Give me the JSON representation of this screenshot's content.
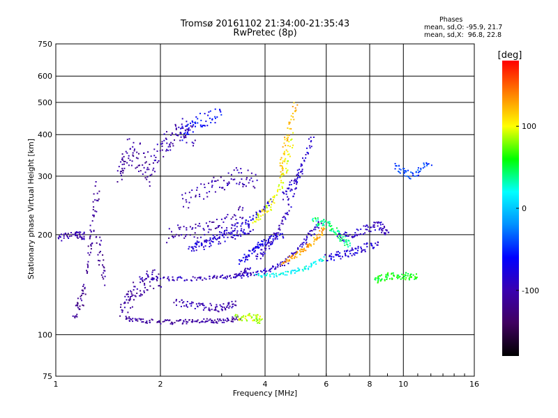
{
  "header": {
    "title_line1": "Tromsø 20161102 21:34:00-21:35:43",
    "title_line2": "RwPretec (8p)",
    "phases_heading": "Phases",
    "phases_line1": "mean, sd,O: -95.9, 21.7",
    "phases_line2": "mean, sd,X:  96.8, 22.8"
  },
  "chart_data": {
    "type": "scatter",
    "title": "Tromsø 20161102 21:34:00-21:35:43",
    "subtitle": "RwPretec (8p)",
    "xlabel": "Frequency [MHz]",
    "ylabel": "Stationary phase Virtual Height [km]",
    "x_scale": "log",
    "y_scale": "log",
    "xlim": [
      1,
      16
    ],
    "ylim": [
      75,
      750
    ],
    "x_ticks": [
      1,
      2,
      4,
      6,
      8,
      10,
      16
    ],
    "x_tick_labels": [
      "1",
      "2",
      "4",
      "6",
      "8",
      "10",
      "16"
    ],
    "y_ticks": [
      75,
      100,
      200,
      300,
      400,
      500,
      600,
      750
    ],
    "y_tick_labels": [
      "75",
      "100",
      "200",
      "300",
      "400",
      "500",
      "600",
      "750"
    ],
    "grid": true,
    "colorbar": {
      "label": "[deg]",
      "range": [
        -180,
        180
      ],
      "ticks": [
        100,
        0,
        -100
      ],
      "tick_labels": [
        "100",
        "0",
        "-100"
      ],
      "colors": [
        "#000000",
        "#400060",
        "#3a00b0",
        "#0000ff",
        "#0090ff",
        "#00ffff",
        "#00ff00",
        "#ffff00",
        "#ff8000",
        "#ff0000"
      ]
    },
    "series": [
      {
        "traces": [
          {
            "x": [
              1.0,
              1.15,
              1.2
            ],
            "y": [
              195,
              200,
              198
            ],
            "phase": -100,
            "spread": 0.05
          },
          {
            "x": [
              1.13,
              1.2,
              1.27,
              1.32
            ],
            "y": [
              115,
              130,
              200,
              285
            ],
            "phase": -115,
            "spread": 0.12
          },
          {
            "x": [
              1.32,
              1.38
            ],
            "y": [
              200,
              140
            ],
            "phase": -112,
            "spread": 0.1
          },
          {
            "x": [
              1.52,
              1.6,
              1.75,
              1.9
            ],
            "y": [
              300,
              360,
              340,
              300
            ],
            "phase": -110,
            "spread": 0.2
          },
          {
            "x": [
              1.55,
              1.65,
              1.8,
              2.0
            ],
            "y": [
              120,
              130,
              145,
              150
            ],
            "phase": -108,
            "spread": 0.15
          },
          {
            "x": [
              1.58,
              1.8,
              2.2,
              2.6,
              3.0,
              3.4
            ],
            "y": [
              112,
              110,
              109,
              110,
              110,
              112
            ],
            "phase": -110,
            "spread": 0.03
          },
          {
            "x": [
              1.9,
              2.1,
              2.3,
              2.5
            ],
            "y": [
              330,
              380,
              420,
              390
            ],
            "phase": -100,
            "spread": 0.15
          },
          {
            "x": [
              2.1,
              2.5,
              3.0,
              3.5
            ],
            "y": [
              200,
              205,
              210,
              240
            ],
            "phase": -105,
            "spread": 0.12
          },
          {
            "x": [
              2.3,
              2.8,
              3.3,
              3.8
            ],
            "y": [
              250,
              280,
              300,
              290
            ],
            "phase": -100,
            "spread": 0.12
          },
          {
            "x": [
              1.75,
              2.2,
              2.8,
              3.3,
              3.6
            ],
            "y": [
              148,
              147,
              148,
              150,
              157
            ],
            "phase": -95,
            "spread": 0.03
          },
          {
            "x": [
              2.2,
              2.6,
              3.0,
              3.3
            ],
            "y": [
              125,
              122,
              120,
              125
            ],
            "phase": -100,
            "spread": 0.05
          },
          {
            "x": [
              2.4,
              2.8,
              3.3,
              3.7
            ],
            "y": [
              180,
              190,
              200,
              210
            ],
            "phase": -85,
            "spread": 0.06
          },
          {
            "x": [
              3.3,
              3.7,
              3.9
            ],
            "y": [
              112,
              113,
              110
            ],
            "phase": 90,
            "spread": 0.05
          },
          {
            "x": [
              2.3,
              2.6,
              3.0
            ],
            "y": [
              400,
              440,
              460
            ],
            "phase": -60,
            "spread": 0.1
          },
          {
            "x": [
              2.5,
              3.0,
              3.6,
              4.2
            ],
            "y": [
              185,
              200,
              220,
              255
            ],
            "phase": -80,
            "spread": 0.04
          },
          {
            "x": [
              3.4,
              3.7,
              4.0,
              4.5
            ],
            "y": [
              165,
              180,
              190,
              200
            ],
            "phase": -75,
            "spread": 0.04
          },
          {
            "x": [
              3.7,
              4.1,
              4.5,
              4.8
            ],
            "y": [
              220,
              240,
              290,
              400
            ],
            "phase": 100,
            "spread": 0.05
          },
          {
            "x": [
              4.4,
              4.6,
              4.9
            ],
            "y": [
              300,
              380,
              500
            ],
            "phase": 120,
            "spread": 0.04
          },
          {
            "x": [
              3.8,
              4.2,
              4.6,
              5.1
            ],
            "y": [
              170,
              190,
              230,
              320
            ],
            "phase": -90,
            "spread": 0.04
          },
          {
            "x": [
              4.5,
              5.0,
              5.5
            ],
            "y": [
              260,
              300,
              400
            ],
            "phase": -85,
            "spread": 0.05
          },
          {
            "x": [
              3.4,
              4.0,
              4.6,
              5.2,
              5.8
            ],
            "y": [
              150,
              155,
              165,
              190,
              220
            ],
            "phase": -90,
            "spread": 0.03
          },
          {
            "x": [
              3.8,
              4.5,
              5.2,
              5.9
            ],
            "y": [
              150,
              152,
              158,
              170
            ],
            "phase": 20,
            "spread": 0.03
          },
          {
            "x": [
              4.5,
              5.0,
              5.5,
              6.0
            ],
            "y": [
              165,
              175,
              190,
              210
            ],
            "phase": 130,
            "spread": 0.04
          },
          {
            "x": [
              5.5,
              6.0,
              6.5,
              7.0
            ],
            "y": [
              220,
              215,
              200,
              185
            ],
            "phase": 40,
            "spread": 0.06
          },
          {
            "x": [
              6.0,
              6.8,
              7.5,
              8.5
            ],
            "y": [
              170,
              175,
              180,
              190
            ],
            "phase": -80,
            "spread": 0.06
          },
          {
            "x": [
              6.5,
              7.5,
              8.5,
              9.0
            ],
            "y": [
              195,
              205,
              215,
              200
            ],
            "phase": -90,
            "spread": 0.06
          },
          {
            "x": [
              8.3,
              9.0,
              10.0,
              11.0
            ],
            "y": [
              145,
              150,
              150,
              150
            ],
            "phase": 60,
            "spread": 0.05
          },
          {
            "x": [
              9.5,
              10.5,
              12.0
            ],
            "y": [
              320,
              300,
              330
            ],
            "phase": -40,
            "spread": 0.05
          }
        ]
      }
    ]
  }
}
